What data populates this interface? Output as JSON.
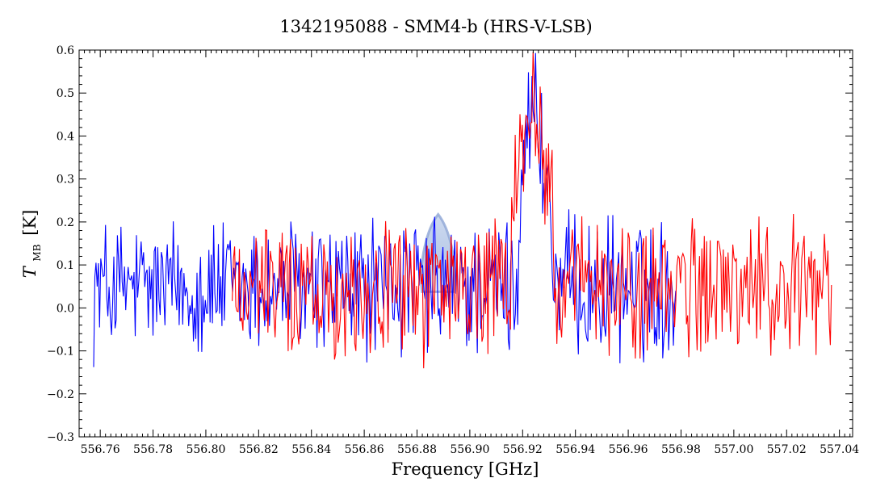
{
  "chart_data": {
    "type": "line",
    "title": "1342195088 - SMM4-b (HRS-V-LSB)",
    "xlabel": "Frequency [GHz]",
    "ylabel_main": "T",
    "ylabel_sub": "MB",
    "ylabel_unit": "[K]",
    "xlim": [
      556.752,
      557.045
    ],
    "ylim": [
      -0.3,
      0.6
    ],
    "x_ticks": [
      556.76,
      556.78,
      556.8,
      556.82,
      556.84,
      556.86,
      556.88,
      556.9,
      556.92,
      556.94,
      556.96,
      556.98,
      557.0,
      557.02,
      557.04
    ],
    "x_tick_labels": [
      "556.76",
      "556.78",
      "556.80",
      "556.82",
      "556.84",
      "556.86",
      "556.88",
      "556.90",
      "556.92",
      "556.94",
      "556.96",
      "556.98",
      "557.00",
      "557.02",
      "557.04"
    ],
    "y_ticks": [
      -0.3,
      -0.2,
      -0.1,
      0.0,
      0.1,
      0.2,
      0.3,
      0.4,
      0.5,
      0.6
    ],
    "y_tick_labels": [
      "−0.3",
      "−0.2",
      "−0.1",
      "0.0",
      "0.1",
      "0.2",
      "0.3",
      "0.4",
      "0.5",
      "0.6"
    ],
    "grid": false,
    "series": [
      {
        "color": "#0000ff",
        "x": [
          556.7575,
          556.761,
          556.765,
          556.77,
          556.775,
          556.78,
          556.785,
          556.79,
          556.795,
          556.8,
          556.805,
          556.81,
          556.815,
          556.82,
          556.825,
          556.83,
          556.835,
          556.84,
          556.845,
          556.85,
          556.855,
          556.86,
          556.865,
          556.87,
          556.875,
          556.88,
          556.885,
          556.888,
          556.891,
          556.895,
          556.9,
          556.905,
          556.91,
          556.914,
          556.917,
          556.92,
          556.922,
          556.923,
          556.925,
          556.927,
          556.929,
          556.931,
          556.933,
          556.936,
          556.94,
          556.945,
          556.95,
          556.955,
          556.96,
          556.965,
          556.97,
          556.975,
          556.978
        ],
        "y": [
          -0.12,
          0.22,
          0.05,
          0.16,
          -0.05,
          0.12,
          0.02,
          0.21,
          -0.08,
          0.16,
          0.03,
          0.14,
          -0.1,
          0.18,
          0.05,
          0.12,
          -0.06,
          0.2,
          -0.02,
          0.15,
          0.04,
          0.22,
          -0.1,
          0.16,
          0.02,
          0.12,
          -0.12,
          0.1,
          -0.08,
          0.2,
          -0.06,
          0.18,
          0.08,
          0.15,
          0.2,
          0.32,
          0.5,
          0.42,
          0.47,
          0.35,
          0.3,
          0.25,
          0.15,
          0.05,
          -0.05,
          0.15,
          -0.03,
          0.1,
          0.01,
          0.12,
          -0.05,
          0.13,
          0.0
        ]
      },
      {
        "color": "#ff0000",
        "x": [
          556.81,
          556.815,
          556.82,
          556.825,
          556.83,
          556.835,
          556.84,
          556.845,
          556.85,
          556.855,
          556.86,
          556.865,
          556.87,
          556.875,
          556.88,
          556.885,
          556.89,
          556.895,
          556.9,
          556.905,
          556.91,
          556.914,
          556.917,
          556.92,
          556.922,
          556.924,
          556.926,
          556.928,
          556.93,
          556.933,
          556.936,
          556.94,
          556.945,
          556.95,
          556.955,
          556.96,
          556.965,
          556.97,
          556.975,
          556.98,
          556.985,
          556.99,
          556.995,
          557.0,
          557.005,
          557.01,
          557.015,
          557.02,
          557.025,
          557.03,
          557.035,
          557.037
        ],
        "y": [
          0.02,
          0.18,
          -0.05,
          0.15,
          0.06,
          0.2,
          -0.08,
          0.12,
          0.05,
          0.18,
          -0.15,
          0.14,
          0.03,
          0.19,
          -0.1,
          0.16,
          0.02,
          0.13,
          -0.04,
          0.2,
          0.06,
          0.22,
          0.28,
          0.35,
          0.45,
          0.49,
          0.42,
          0.35,
          0.28,
          0.22,
          0.15,
          0.18,
          0.08,
          0.12,
          -0.12,
          0.1,
          0.05,
          0.14,
          -0.08,
          0.12,
          0.02,
          0.16,
          -0.02,
          0.1,
          0.05,
          0.15,
          -0.05,
          0.12,
          0.01,
          0.14,
          0.04,
          0.02
        ]
      }
    ],
    "annotation_blob_center": [
      556.888,
      0.09
    ]
  }
}
